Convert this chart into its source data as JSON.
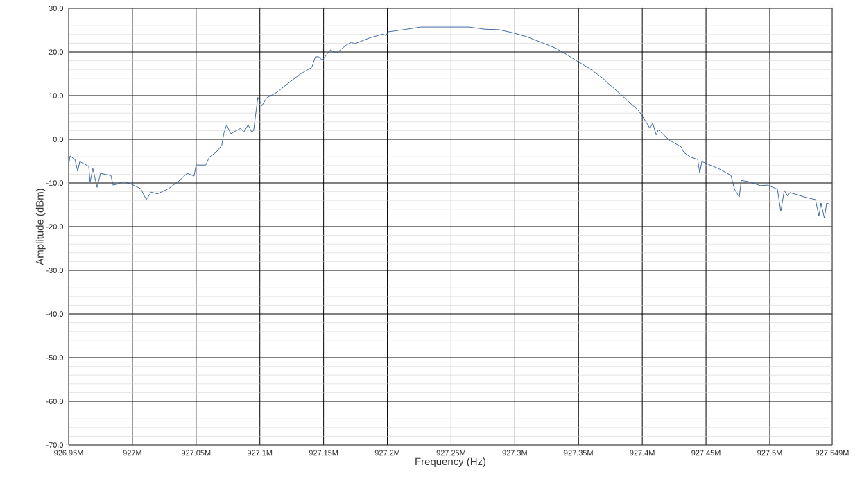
{
  "chart_data": {
    "type": "line",
    "xlabel": "Frequency (Hz)",
    "ylabel": "Amplitude (dBm)",
    "x": [
      926.95,
      926.9511,
      926.9549,
      926.9571,
      926.9587,
      926.9658,
      926.9668,
      926.969,
      926.9723,
      926.975,
      926.9832,
      926.9848,
      926.9886,
      926.9929,
      926.9995,
      927.0065,
      927.0109,
      927.0147,
      927.0196,
      927.0283,
      927.0359,
      927.0429,
      927.0484,
      927.05,
      927.0576,
      927.0603,
      927.0658,
      927.0701,
      927.0717,
      927.0739,
      927.0772,
      927.0848,
      927.0875,
      927.0908,
      927.0935,
      927.0951,
      927.0984,
      927.1016,
      927.1054,
      927.1136,
      927.119,
      927.1315,
      927.1408,
      927.1435,
      927.1462,
      927.1489,
      927.1554,
      927.1598,
      927.1679,
      927.1717,
      927.1745,
      927.1859,
      927.1967,
      927.1989,
      927.2005,
      927.2152,
      927.2261,
      927.2495,
      927.2641,
      927.2766,
      927.2875,
      927.2984,
      927.3092,
      927.3217,
      927.3326,
      927.3402,
      927.3489,
      927.3582,
      927.369,
      927.3728,
      927.3761,
      927.3842,
      927.3973,
      927.4016,
      927.406,
      927.4082,
      927.4109,
      927.4125,
      927.4217,
      927.4304,
      927.4326,
      927.438,
      927.4435,
      927.4451,
      927.4467,
      927.4598,
      927.4668,
      927.4696,
      927.4723,
      927.4761,
      927.4777,
      927.4848,
      927.4924,
      927.4984,
      927.506,
      927.5087,
      927.5114,
      927.5141,
      927.5158,
      927.5283,
      927.5359,
      927.5386,
      927.5402,
      927.5429,
      927.5446,
      927.5473
    ],
    "series": [
      {
        "color": "#2c5a96",
        "values": [
          -5.9,
          -3.8,
          -4.6,
          -7.3,
          -5.1,
          -6.2,
          -9.8,
          -6.7,
          -11.0,
          -7.8,
          -8.3,
          -10.5,
          -10.2,
          -9.7,
          -10.3,
          -11.3,
          -13.8,
          -12.1,
          -12.5,
          -11.3,
          -9.7,
          -7.8,
          -8.4,
          -5.9,
          -5.9,
          -4.1,
          -2.9,
          -1.4,
          1.3,
          3.3,
          1.3,
          2.5,
          1.7,
          3.3,
          1.7,
          2.0,
          9.6,
          7.7,
          9.5,
          10.8,
          12.1,
          14.9,
          16.5,
          18.9,
          18.9,
          18.1,
          20.5,
          19.7,
          21.6,
          22.2,
          21.9,
          23.2,
          24.1,
          23.7,
          24.6,
          25.2,
          25.7,
          25.7,
          25.7,
          25.2,
          25.1,
          24.4,
          23.5,
          22.1,
          20.8,
          19.5,
          17.9,
          16.3,
          14.0,
          12.9,
          12.1,
          10.0,
          6.5,
          4.6,
          2.5,
          3.7,
          1.0,
          2.2,
          -0.3,
          -1.7,
          -3.0,
          -4.1,
          -4.6,
          -7.8,
          -5.1,
          -6.7,
          -7.8,
          -8.3,
          -11.4,
          -13.2,
          -9.4,
          -9.8,
          -10.6,
          -10.5,
          -11.4,
          -16.5,
          -11.7,
          -13.0,
          -12.2,
          -13.3,
          -13.8,
          -17.6,
          -14.6,
          -18.1,
          -14.6,
          -14.9
        ]
      }
    ],
    "xlim": [
      926.95,
      927.549
    ],
    "ylim": [
      -70,
      30
    ],
    "xticks": [
      {
        "value": 926.95,
        "label": "926.95M"
      },
      {
        "value": 927.0,
        "label": "927M"
      },
      {
        "value": 927.05,
        "label": "927.05M"
      },
      {
        "value": 927.1,
        "label": "927.1M"
      },
      {
        "value": 927.15,
        "label": "927.15M"
      },
      {
        "value": 927.2,
        "label": "927.2M"
      },
      {
        "value": 927.25,
        "label": "927.25M"
      },
      {
        "value": 927.3,
        "label": "927.3M"
      },
      {
        "value": 927.35,
        "label": "927.35M"
      },
      {
        "value": 927.4,
        "label": "927.4M"
      },
      {
        "value": 927.45,
        "label": "927.45M"
      },
      {
        "value": 927.5,
        "label": "927.5M"
      },
      {
        "value": 927.549,
        "label": "927.549M"
      }
    ],
    "yticks": [
      {
        "value": 30,
        "label": "30.0"
      },
      {
        "value": 20,
        "label": "20.0"
      },
      {
        "value": 10,
        "label": "10.0"
      },
      {
        "value": 0,
        "label": "0.0"
      },
      {
        "value": -10,
        "label": "-10.0"
      },
      {
        "value": -20,
        "label": "-20.0"
      },
      {
        "value": -30,
        "label": "-30.0"
      },
      {
        "value": -40,
        "label": "-40.0"
      },
      {
        "value": -50,
        "label": "-50.0"
      },
      {
        "value": -60,
        "label": "-60.0"
      },
      {
        "value": -70,
        "label": "-70.0"
      }
    ],
    "grid": true,
    "marker": "none",
    "line_style": "solid"
  }
}
